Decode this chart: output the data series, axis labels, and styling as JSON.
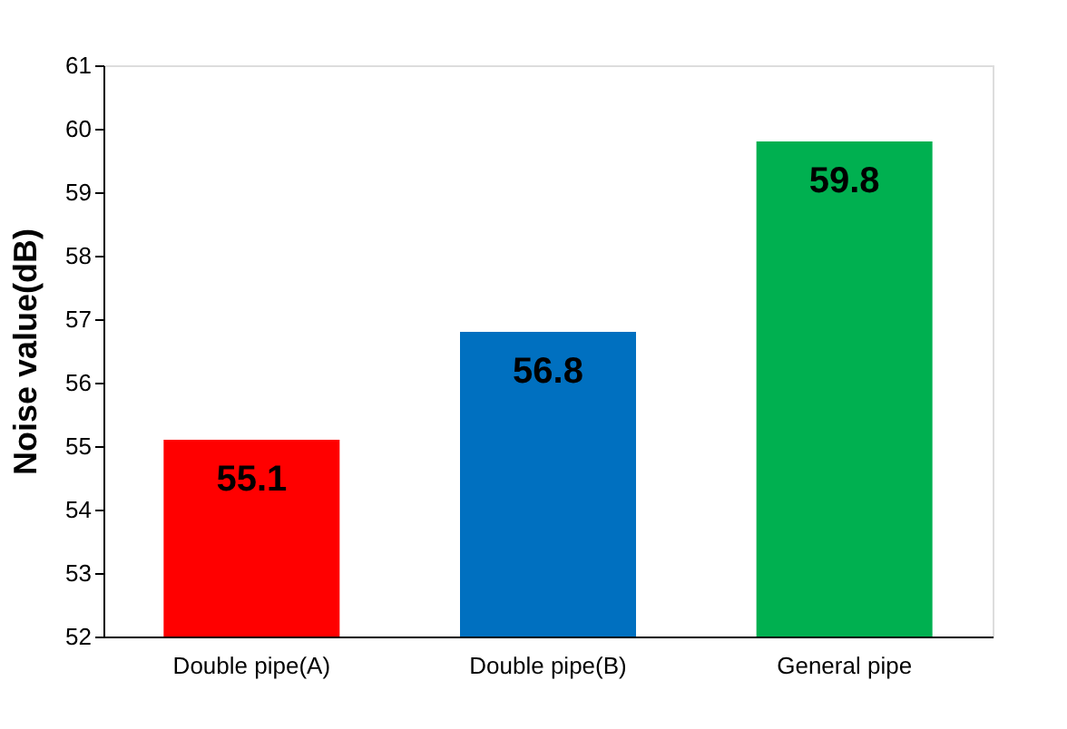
{
  "chart_data": {
    "type": "bar",
    "ylabel": "Noise value(dB)",
    "categories": [
      "Double pipe(A)",
      "Double pipe(B)",
      "General pipe"
    ],
    "values": [
      55.1,
      56.8,
      59.8
    ],
    "colors": [
      "#ff0000",
      "#0070c0",
      "#00b050"
    ],
    "ylim": [
      52,
      61
    ],
    "yticks": [
      52,
      53,
      54,
      55,
      56,
      57,
      58,
      59,
      60,
      61
    ],
    "grid": false,
    "legend": false,
    "data_labels": true
  }
}
